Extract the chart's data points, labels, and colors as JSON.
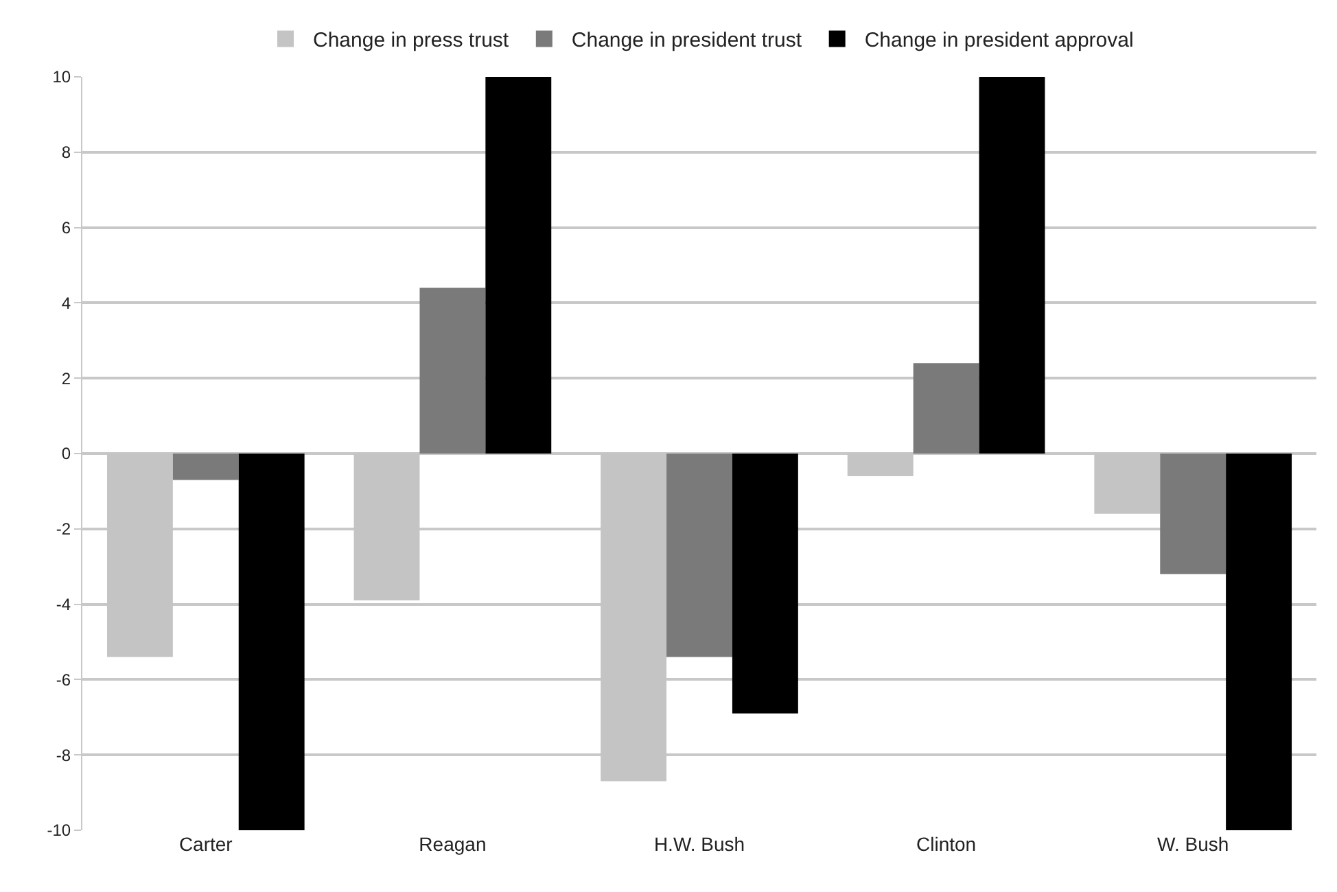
{
  "chart_data": {
    "type": "bar",
    "categories": [
      "Carter",
      "Reagan",
      "H.W. Bush",
      "Clinton",
      "W. Bush"
    ],
    "series": [
      {
        "name": "Change in press trust",
        "color": "#c4c4c4",
        "values": [
          -5.4,
          -3.9,
          -8.7,
          -0.6,
          -1.6
        ]
      },
      {
        "name": "Change in president trust",
        "color": "#7a7a7a",
        "values": [
          -0.7,
          4.4,
          -5.4,
          2.4,
          -3.2
        ]
      },
      {
        "name": "Change in president approval",
        "color": "#000000",
        "values": [
          -10,
          10,
          -6.9,
          10,
          -10
        ]
      }
    ],
    "ylim": [
      -10,
      10
    ],
    "yticks": [
      -10,
      -8,
      -6,
      -4,
      -2,
      0,
      2,
      4,
      6,
      8,
      10
    ],
    "grid": "y",
    "legend": "top"
  }
}
